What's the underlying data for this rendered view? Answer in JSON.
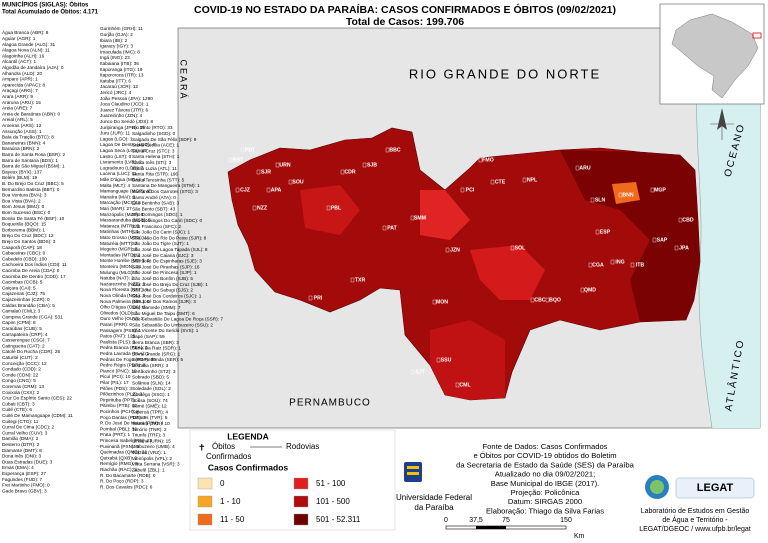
{
  "header": {
    "title": "COVID-19 NO ESTADO DA PARAÍBA: CASOS CONFIRMADOS E  ÓBITOS (09/02/2021)",
    "subtitle": "Total de Casos: 199.706"
  },
  "deaths_list": {
    "heading": "MUNICÍPIOS (SIGLAS): Óbitos",
    "total": "Total Acumulado de Óbitos: 4.171",
    "columns": [
      [
        "Água Branca (ABR): 8",
        "Aguiar (AGR): 1",
        "Alagoa Grande (ALG): 31",
        "Alagoa Nova (ALN): 11",
        "Alagoinha (ALH): 16",
        "Alcantil (ACT): 1",
        "Algodão de Jandaíra (AJA): 0",
        "Alhandra (ALD): 20",
        "Amparo (APR): 1",
        "Aparecida (APAC): 8",
        "Araçagi (ARG): 7",
        "Arara (ARR): 9",
        "Araruna (ARU): 15",
        "Areia (ARE): 7",
        "Areia de Baraúnas (ABN): 0",
        "Areial (ARL): 5",
        "Aroeiras (ARS): 12",
        "Assunção (ASS): 1",
        "Baía da Traição (BTC): 8",
        "Bananeiras (BNN): 4",
        "Baraúna (BRN): 2",
        "Barra de Santa Rosa (BSR): 2",
        "Barra de Santana (BDS): 1",
        "Barra de São Miguel (BSM): 1",
        "Bayeux (BYX): 137",
        "Belém (BLM): 19",
        "B. Do Brejo Do Cruz (BBC): 5",
        "Bernardino Batista (BBT): 0",
        "Boa Ventura (BVA): 3",
        "Boa Vista (BVA): 2",
        "Bom Jesus (BMJ): 0",
        "Bom Sucesso (BSC): 0",
        "Bonito De Santa Fé (BSF): 10",
        "Boqueirão (BQO): 15",
        "Borborema (BBM): 1",
        "Brejo Do Cruz (BDC): 12",
        "Brejo Do Santos (BDS): 3",
        "Caaporã (CAP): 18",
        "Cabaceiras (CBC): 0",
        "Cabedelo (CBD): 100",
        "Cachoeira Dos Índios (CDI): 11",
        "Cacimba De Areia (CDA): 0",
        "Cacimba De Dentro (CDD): 17",
        "Cacimbas (CCB): 5",
        "Caiçara (CAI): 5",
        "Cajazeiras (CJZ): 75",
        "Cajazeirinhas (CZR): 0",
        "Caldas Brandão (CBA): 5",
        "Camalaú (CML): 3",
        "Campina Grande (CGA): 531",
        "Capim (CPM): 8",
        "Caraúbas (CUB): 5",
        "Carrapateira (CRP): 4",
        "Casserengue (CSG): 7",
        "Catingueira (CAT): 2",
        "Catolé Do Rocha (CDR): 26",
        "Caturité (CUT): 2",
        "Conceição (CCC): 12",
        "Condado (CDD): 2",
        "Conde (CDN): 22",
        "Congo (CNG): 5",
        "Coremas (CRM): 13",
        "Coxixola (CXX): 2",
        "Cruz Do Espírito Santo (CES): 22",
        "Cubati (CBT): 3",
        "Cuité (CTE): 6",
        "Cuité De Mamanguape (CDM): 11",
        "Cuitegi (CTG): 11",
        "Curral De Cima (CDC): 2",
        "Curral Velho (CUV): 3",
        "Damião (DMA): 2",
        "Desterro (DTR): 2",
        "Diamante (DMT): 8",
        "Dona Inês (DNI): 3",
        "Duas Estradas (DUE): 3",
        "Emas (EMA): 4",
        "Esperança (ESP): 27",
        "Fagundes (FUD): 7",
        "Frei Martinho (FMO): 0",
        "Gado Bravo (GBV): 3"
      ],
      [
        "Gurinhém (GRH): 11",
        "Gurjão (GJA): 2",
        "Ibiara (IBI): 2",
        "Igaracy (IGY): 3",
        "Imaculada (IMC): 8",
        "Ingá (ING): 23",
        "Itabaiana (ITB): 36",
        "Itaporanga (ITG): 19",
        "Itapororoca (ITR): 13",
        "Itatuba (ITT): 6",
        "Jacaraú (JCR): 12",
        "Jericó (JRC): 4",
        "João Pessoa (JPA): 1290",
        "Joca Claudino (JCD): 1",
        "Juarez Távora (JTR): 6",
        "Juazeirinho (JZN): 4",
        "Junco Do Seridó (JDS): 8",
        "Juripiranga (JPG): 16",
        "Juru (JUR): 11",
        "Lagoa (LGO): 1",
        "Lagoa De Dentro (LDD): 4",
        "Lagoa Seca (LGS): 29",
        "Lastro (LST): 0",
        "Livramento (LVR): 2",
        "Logradouro (LGR): 7",
        "Lucena (LUC): 11",
        "Mãe D'água (MDA): 4",
        "Malta (MLT): 4",
        "Mamanguape (MGP): 45",
        "Manaíra (MAI): 3",
        "Marcação (MCÇ): 5",
        "Mari (MAR): 27",
        "Marizópolis (MZP): 6",
        "Massaranduba (MSB): 5",
        "Mataraca (MTR): 8",
        "Matinhas (MTH): 1",
        "Mato Grosso (MTG): 1",
        "Maturéia (MTT): 2",
        "Mogeiro (MGR): 8",
        "Montadas (MTD): 2",
        "Monte Horebe (MTH): 0",
        "Monteiro (MON): 21",
        "Mulungu (MLG): 9",
        "Natuba (NAT): 2",
        "Nazarezinho (NZZ): 3",
        "Nova Floresta (NFT): 9",
        "Nova Olinda (NOL): 3",
        "Nova Palmeira (NPL): 0",
        "Olho D'água (ODA): 5",
        "Olivedos (OLD): 3",
        "Ouro Velho (OUV): 1",
        "Parari (PRR): 0",
        "Passagem (PSS): 1",
        "Patos (PAT): 125",
        "Paulista (PLS): 3",
        "Pedra Branca (PBA): 1",
        "Pedra Lavrada (PLA): 1",
        "Pedras De Fogo (PDF): 38",
        "Pedro Régis (PDR): 8",
        "Piancó (PNC): 10",
        "Picuí (PCI): 10",
        "Pilar (PIL): 17",
        "Pilões (PDS): 3",
        "Pilõezinhos (PLZ): 3",
        "Pirpirituba (PPT): 7",
        "Pitimbu (PTB): 10",
        "Pocinhos (PCH): 8",
        "Poço Dantas (PDT): 2",
        "P. Do José De Moura (PJM): 4",
        "Pombal (PBL): 32",
        "Prata (PRT): 1",
        "Princesa Isabel (PRI): 22",
        "Puxinanã (PXN): 8",
        "Queimadas (QMD): 32",
        "Quixabá (QXB): 2",
        "Remígio (RMG): 9",
        "Riachão (RAC): 2",
        "R. Do Bacamarte (RDB): 0",
        "R. Do Poço (RDP): 3",
        "R. Dos Cavalos (RDC): 6"
      ],
      [
        "Rio Tinto (RTO): 33",
        "Salgadinho (SGD): 0",
        "Salgado De São Félix (SDF): 9",
        "Santa Cecília (ACE): 1",
        "Santa Cruz (STC): 3",
        "Santa Helena (STH): 1",
        "Santa Inês (STI): 3",
        "Santa Luzia (ATL): 11",
        "Santa Rita (STR): 190",
        "Santa Teresinha (STT): 5",
        "Santana De Mangueira (STM): 1",
        "Santana Dos Garrotes (STG): 3",
        "Santo André (ATA): 0",
        "São Bentinho (SAB): 3",
        "São Bento (SBT): 43",
        "São Domingos (SDG): 1",
        "São Domingos Do Cariri (SDC): 0",
        "São Francisco (SFC): 2",
        "São João Do Cariri (SJC): 1",
        "São João Do Rio Do Peixe (SJR): 8",
        "São João Do Tigre (SJT): 1",
        "São José Da Lagoa Tapada (SJL): 8",
        "São José De Caiana (SJC): 3",
        "São José De Espinharas (SJE): 3",
        "São José De Piranhas (SJP): 16",
        "São José De Princesa (SJP): 1",
        "São José Do Bonfim (SJB): 5",
        "São José Do Brejo Do Cruz (SJB): 1",
        "São José Do Sabugi (SJS): 2",
        "São José Dos Cordeiros (SJC): 1",
        "São José Dos Ramos (SJR): 3",
        "São Mamede (SMM): 7",
        "São Miguel De Taipu (SMT): 6",
        "São Sebastião De Lagoa De Roça (SSR): 7",
        "São Sebastião Do Umbuzeiro (SSU): 2",
        "São Vicente Do Seridó (SVS): 1",
        "Sapé (SAP): 59",
        "Serra Branca (SBR): 3",
        "Serra Da Raiz (SDR): 1",
        "Serra Grande (SRG): 1",
        "Serra Redonda (SER): 5",
        "Serraria (SRR): 3",
        "Sertãozinho (STZ): 3",
        "Sobrado (SBD): 5",
        "Solânea (SLN): 14",
        "Soledade (SOL): 2",
        "Sossêgo (SSG): 1",
        "Sousa (SOU): 74",
        "Sumé (SMÉ): 12",
        "Taperoá (TPR): 4",
        "Tavares (TVR): 5",
        "Teixeira (TXR): 10",
        "Tenório (TNR): 2",
        "Triunfo (TRF): 3",
        "Uiraúna (URN): 15",
        "Umbuzeiro (UMB): 4",
        "Várzea (VRZ): 1",
        "Vieirópolis (VPL): 2",
        "Vista Serrana (VSR): 3",
        "Zabelê (ZBL): 1"
      ]
    ]
  },
  "map_labels": {
    "north": "RIO GRANDE DO NORTE",
    "west": "CEARÁ",
    "south": "PERNAMBUCO",
    "ocean_1": "OCEANO",
    "ocean_2": "ATLÂNTICO",
    "municipalities": [
      "BBC",
      "CDR",
      "SJB",
      "BBT",
      "PDT",
      "SJR",
      "URN",
      "SOU",
      "APA",
      "CJZ",
      "PBL",
      "PAT",
      "SMM",
      "PCI",
      "CTE",
      "ARU",
      "SLN",
      "BNN",
      "ESP",
      "CGA",
      "ING",
      "ITB",
      "SAP",
      "MGP",
      "JPA",
      "CBD",
      "MON",
      "SSU",
      "CML",
      "SJT",
      "TXR",
      "PRI",
      "NZZ",
      "CBC",
      "QMD",
      "BQO",
      "SOL",
      "JZN",
      "FMO",
      "NPL"
    ]
  },
  "legend": {
    "title": "LEGENDA",
    "deaths": "Óbitos",
    "deaths_sub": "Confirmados",
    "roads": "Rodovias",
    "classes_title": "Casos Confirmados",
    "classes": [
      {
        "label": "0",
        "color": "#fde3b4"
      },
      {
        "label": "1 - 10",
        "color": "#f5a623"
      },
      {
        "label": "11 - 50",
        "color": "#f06a1c"
      },
      {
        "label": "51 - 100",
        "color": "#e01e1e"
      },
      {
        "label": "101 - 500",
        "color": "#b00d0d"
      },
      {
        "label": "501 - 52.311",
        "color": "#6e0000"
      }
    ]
  },
  "institution": [
    "Universidade Federal",
    "da Paraíba"
  ],
  "scale": {
    "ticks": [
      "0",
      "37,5",
      "75",
      "150"
    ],
    "unit": "Km"
  },
  "source": [
    "Fonte de Dados: Casos Confirmados",
    "e Óbitos por COVID-19 obtidos do Boletim",
    "da Secretaria de Estado da Saúde (SES) da Paraíba",
    "Atualizado no dia 09/02/2021;",
    "Base Municipal do IBGE (2017).",
    "Projeção: Policônica",
    "Datum: SIRGAS 2000",
    "Elaboração: Thiago da Silva Farias"
  ],
  "lab": {
    "logo": "LEGAT",
    "lines": [
      "Laboratório de Estudos em Gestão",
      "de Água e Território -",
      "LEGAT/DGEOC / www.ufpb.br/legat"
    ]
  }
}
